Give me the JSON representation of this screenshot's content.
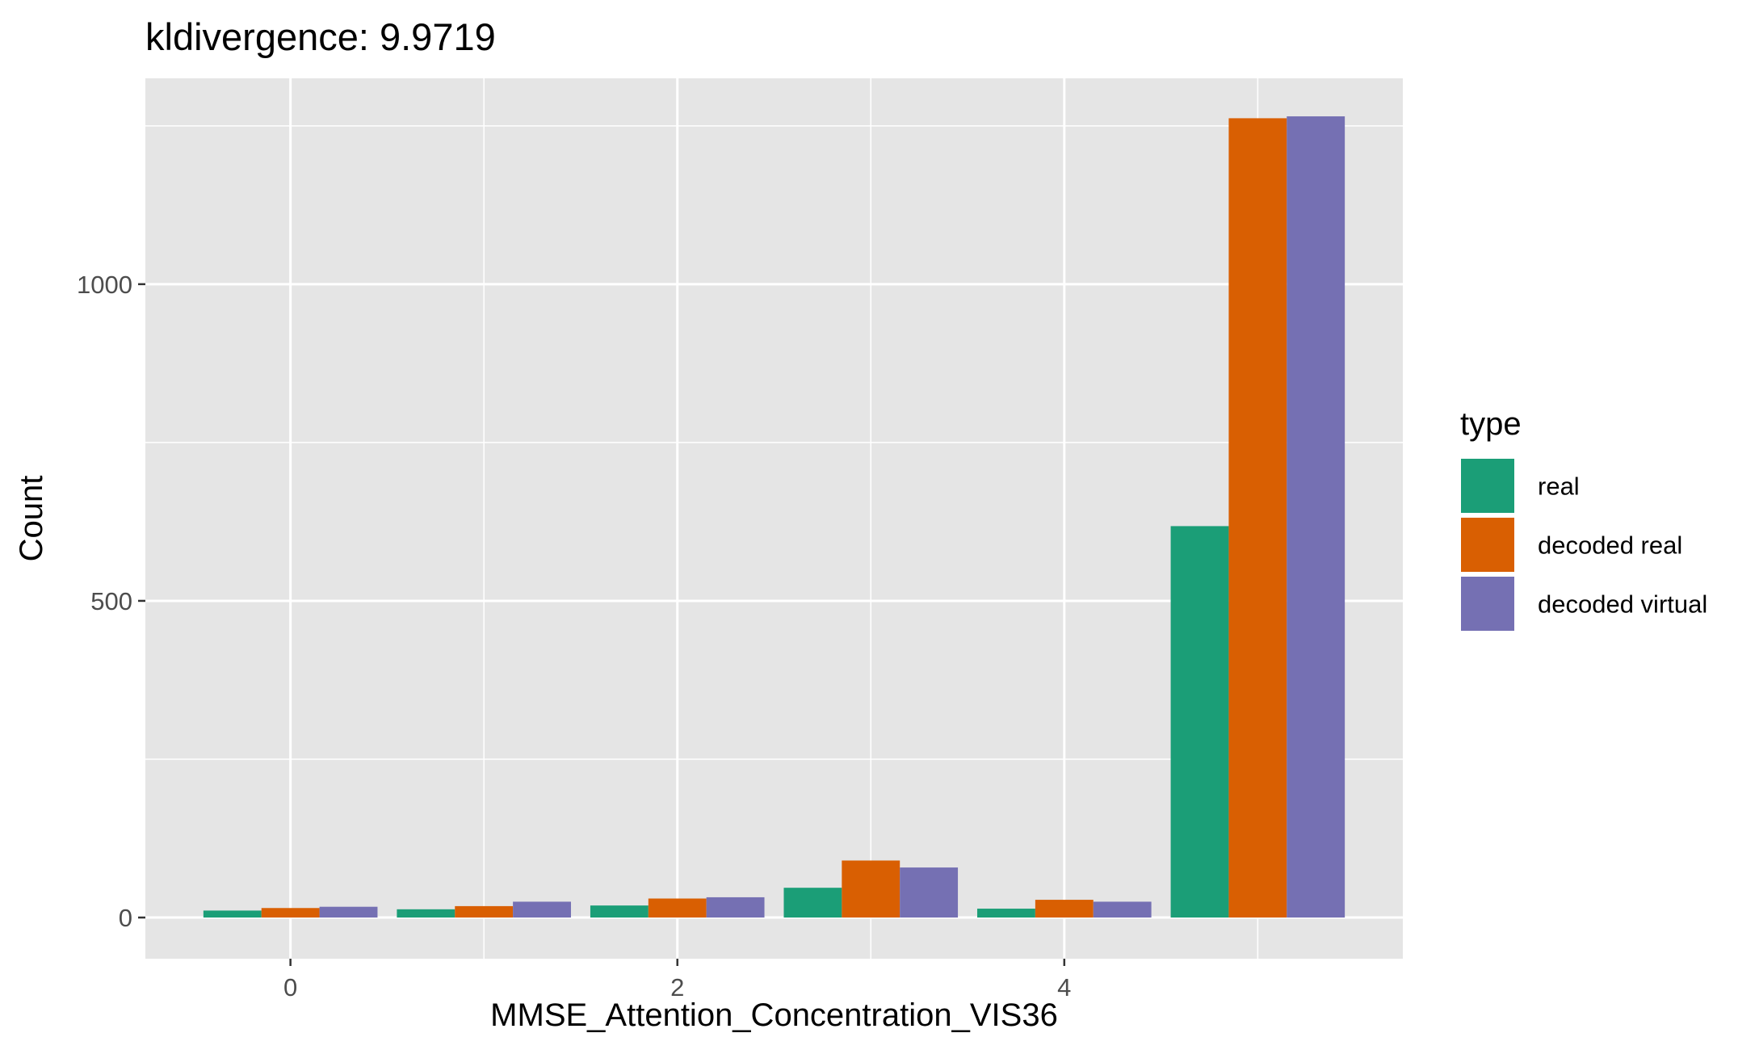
{
  "chart_data": {
    "type": "bar",
    "title": "kldivergence: 9.9719",
    "xlabel": "MMSE_Attention_Concentration_VIS36",
    "ylabel": "Count",
    "x": [
      0,
      1,
      2,
      3,
      4,
      5
    ],
    "x_ticks": [
      0,
      2,
      4
    ],
    "y_ticks": [
      0,
      500,
      1000
    ],
    "xlim": [
      -0.75,
      5.75
    ],
    "ylim": [
      -65,
      1325
    ],
    "grid": true,
    "legend": {
      "title": "type",
      "position": "right"
    },
    "series": [
      {
        "name": "real",
        "color": "#1b9e77",
        "values": [
          11,
          13,
          19,
          47,
          14,
          618
        ]
      },
      {
        "name": "decoded real",
        "color": "#d95f02",
        "values": [
          15,
          18,
          30,
          90,
          28,
          1262
        ]
      },
      {
        "name": "decoded virtual",
        "color": "#7570b3",
        "values": [
          17,
          25,
          32,
          79,
          25,
          1265
        ]
      }
    ]
  }
}
